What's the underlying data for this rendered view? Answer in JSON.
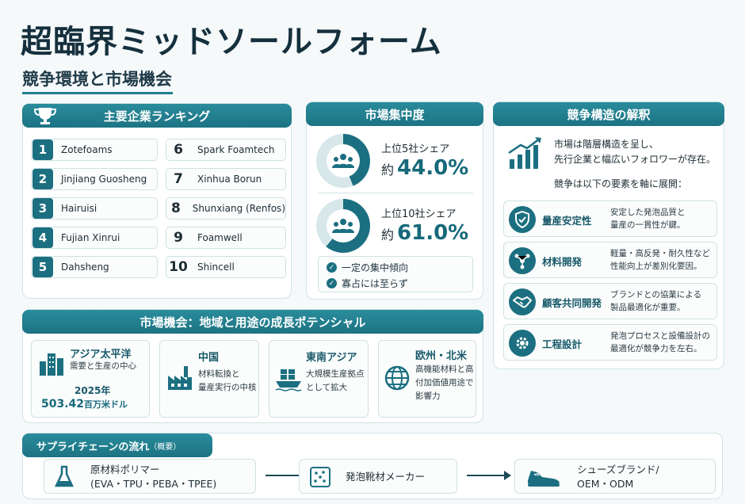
{
  "header": {
    "title": "超臨界ミッドソールフォーム",
    "subtitle": "競争環境と市場機会"
  },
  "ranking": {
    "title": "主要企業ランキング",
    "items": [
      {
        "rank": "1",
        "name": "Zotefoams"
      },
      {
        "rank": "2",
        "name": "Jinjiang Guosheng"
      },
      {
        "rank": "3",
        "name": "Hairuisi"
      },
      {
        "rank": "4",
        "name": "Fujian Xinrui"
      },
      {
        "rank": "5",
        "name": "Dahsheng"
      },
      {
        "rank": "6",
        "name": "Spark Foamtech"
      },
      {
        "rank": "7",
        "name": "Xinhua Borun"
      },
      {
        "rank": "8",
        "name": "Shunxiang (Renfos)"
      },
      {
        "rank": "9",
        "name": "Foamwell"
      },
      {
        "rank": "10",
        "name": "Shincell"
      }
    ]
  },
  "concentration": {
    "title": "市場集中度",
    "top5_label": "上位5社シェア",
    "top5_prefix": "約",
    "top5_value": "44.0%",
    "top5_share": 44.0,
    "top10_label": "上位10社シェア",
    "top10_prefix": "約",
    "top10_value": "61.0%",
    "top10_share": 61.0,
    "notes": [
      "一定の集中傾向",
      "寡占には至らず"
    ]
  },
  "interpretation": {
    "title": "競争構造の解釈",
    "text_line1": "市場は階層構造を呈し、",
    "text_line2": "先行企業と幅広いフォロワーが存在。",
    "text_line3": "競争は以下の要素を軸に展開：",
    "items": [
      {
        "label": "量産安定性",
        "desc1": "安定した発泡品質と",
        "desc2": "量産の一貫性が鍵。",
        "icon": "shield-check-icon"
      },
      {
        "label": "材料開発",
        "desc1": "軽量・高反発・耐久性など",
        "desc2": "性能向上が差別化要因。",
        "icon": "molecule-icon"
      },
      {
        "label": "顧客共同開発",
        "desc1": "ブランドとの協業による",
        "desc2": "製品最適化が重要。",
        "icon": "handshake-icon"
      },
      {
        "label": "工程設計",
        "desc1": "発泡プロセスと設備設計の",
        "desc2": "最適化が競争力を左右。",
        "icon": "gear-icon"
      }
    ]
  },
  "opportunities": {
    "title": "市場機会：地域と用途の成長ポテンシャル",
    "cards": [
      {
        "title": "アジア太平洋",
        "desc1": "需要と生産の中心",
        "stat1": "2025年",
        "stat2": "503.42",
        "stat2_unit": "百万米ドル",
        "icon": "city-buildings-icon"
      },
      {
        "title": "中国",
        "desc1": "材料転換と",
        "desc2": "量産実行の中核",
        "icon": "factory-icon"
      },
      {
        "title": "東南アジア",
        "desc1": "大規模生産拠点",
        "desc2": "として拡大",
        "icon": "cargo-ship-icon"
      },
      {
        "title": "欧州・北米",
        "desc1": "高機能材料と高",
        "desc2": "付加価値用途で",
        "desc3": "影響力",
        "icon": "globe-icon"
      }
    ]
  },
  "supply_chain": {
    "title": "サプライチェーンの流れ",
    "title_suffix": "（概要）",
    "steps": [
      {
        "line1": "原材料ポリマー",
        "line2": "(EVA・TPU・PEBA・TPEE)",
        "icon": "flask-icon"
      },
      {
        "line1": "発泡靴材メーカー",
        "icon": "foam-sheet-icon"
      },
      {
        "line1": "シューズブランド/",
        "line2": "OEM・ODM",
        "icon": "shoe-icon"
      }
    ]
  }
}
